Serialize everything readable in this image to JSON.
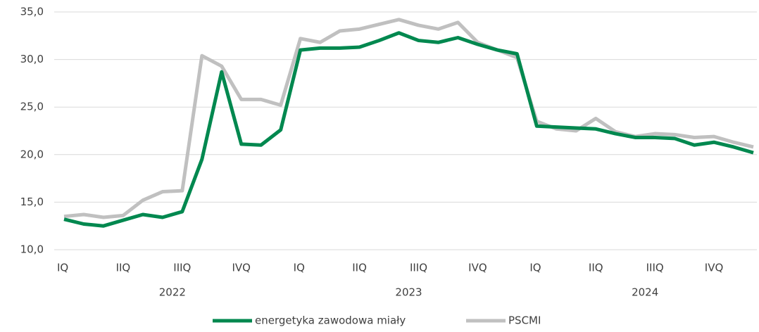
{
  "chart_data": {
    "type": "line",
    "categories": [
      "IQ",
      null,
      null,
      "IIQ",
      null,
      null,
      "IIIQ",
      null,
      null,
      "IVQ",
      null,
      null,
      "IQ",
      null,
      null,
      "IIQ",
      null,
      null,
      "IIIQ",
      null,
      null,
      "IVQ",
      null,
      null,
      "IQ",
      null,
      null,
      "IIQ",
      null,
      null,
      "IIIQ",
      null,
      null,
      "IVQ",
      null,
      null
    ],
    "year_labels": [
      "2022",
      "2023",
      "2024"
    ],
    "series": [
      {
        "name": "energetyka zawodowa miały",
        "color": "#00884f",
        "values": [
          13.2,
          12.7,
          12.5,
          13.1,
          13.7,
          13.4,
          14.0,
          19.5,
          28.7,
          21.1,
          21.0,
          22.6,
          31.0,
          31.2,
          31.2,
          31.3,
          32.0,
          32.8,
          32.0,
          31.8,
          32.3,
          31.6,
          31.0,
          30.6,
          23.0,
          22.9,
          22.8,
          22.7,
          22.2,
          21.8,
          21.8,
          21.7,
          21.0,
          21.3,
          20.8,
          20.2
        ]
      },
      {
        "name": "PSCMI",
        "color": "#c0c0c0",
        "values": [
          13.5,
          13.7,
          13.4,
          13.6,
          15.2,
          16.1,
          16.2,
          30.4,
          29.3,
          25.8,
          25.8,
          25.2,
          32.2,
          31.8,
          33.0,
          33.2,
          33.7,
          34.2,
          33.6,
          33.2,
          33.9,
          31.8,
          31.0,
          30.2,
          23.5,
          22.7,
          22.5,
          23.8,
          22.4,
          21.9,
          22.2,
          22.1,
          21.8,
          21.9,
          21.3,
          20.8
        ]
      }
    ],
    "ylim": [
      10,
      35
    ],
    "yticks": [
      {
        "value": 10,
        "label": "10,0"
      },
      {
        "value": 15,
        "label": "15,0"
      },
      {
        "value": 20,
        "label": "20,0"
      },
      {
        "value": 25,
        "label": "25,0"
      },
      {
        "value": 30,
        "label": "30,0"
      },
      {
        "value": 35,
        "label": "35,0"
      }
    ],
    "grid": true,
    "legend": "bottom"
  }
}
